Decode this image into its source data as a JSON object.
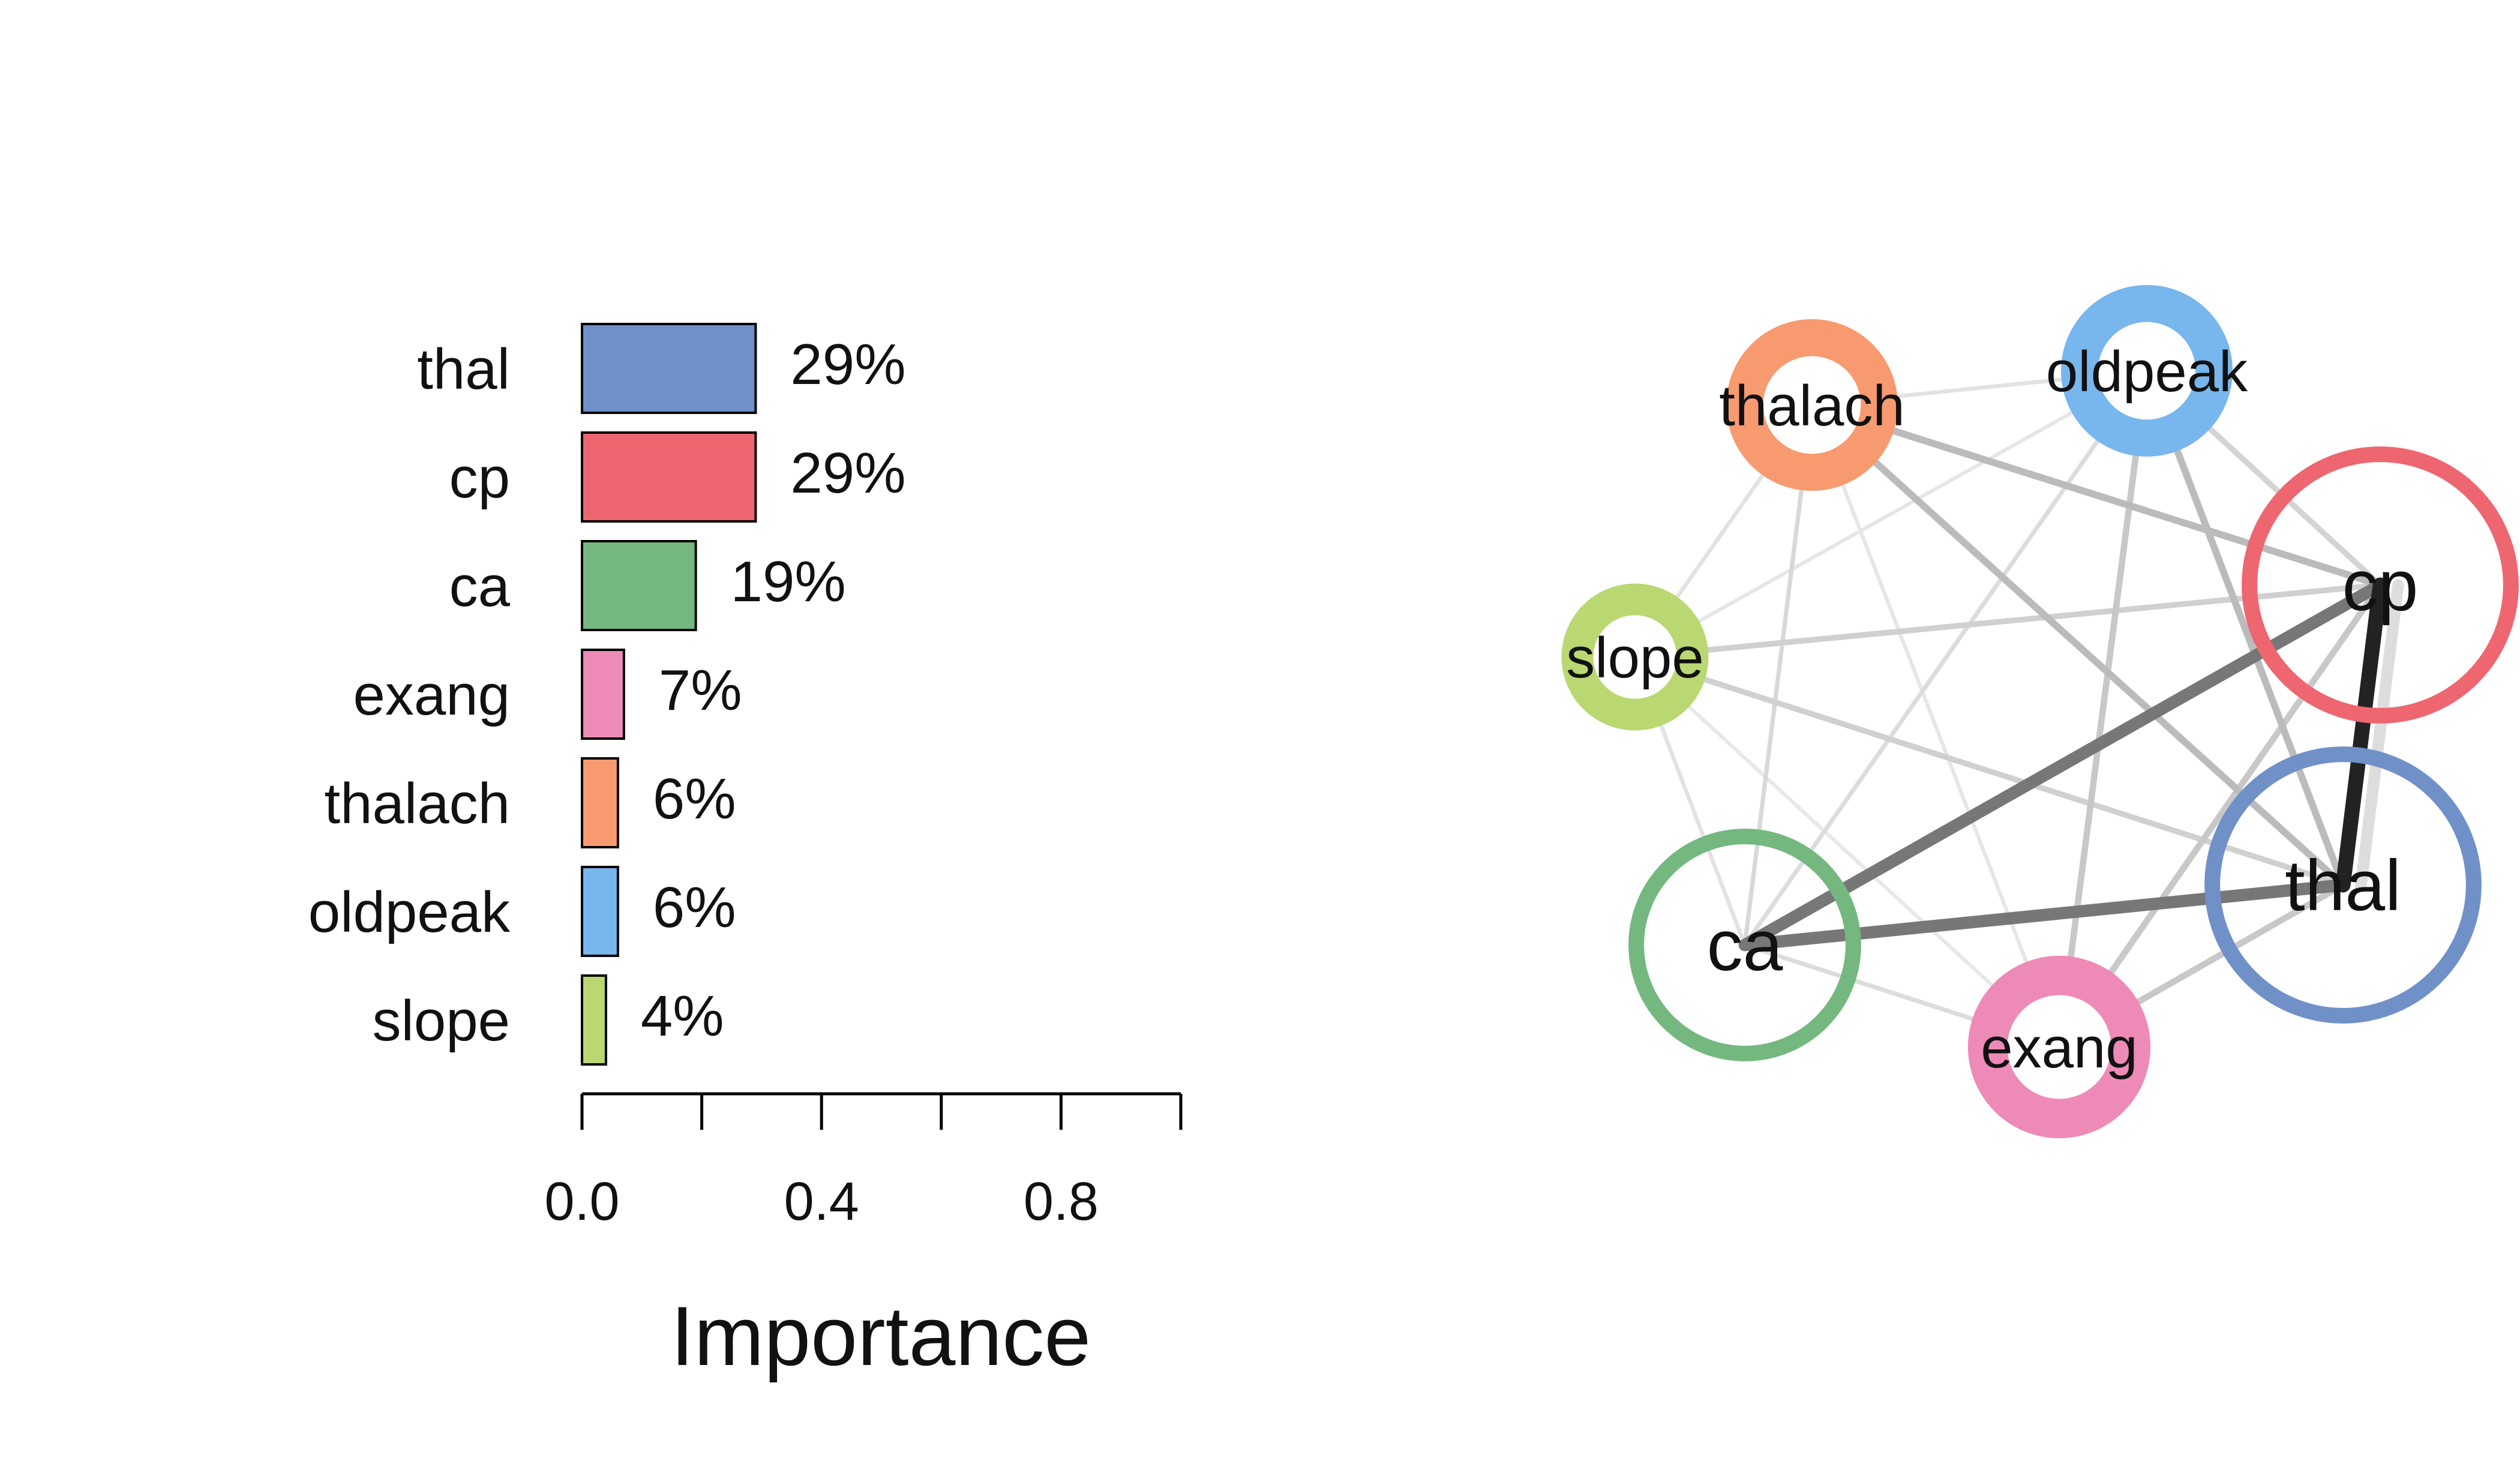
{
  "chart_data": [
    {
      "type": "bar",
      "orientation": "horizontal",
      "categories": [
        "thal",
        "cp",
        "ca",
        "exang",
        "thalach",
        "oldpeak",
        "slope"
      ],
      "values": [
        0.29,
        0.29,
        0.19,
        0.07,
        0.06,
        0.06,
        0.04
      ],
      "value_labels": [
        "29%",
        "29%",
        "19%",
        "7%",
        "6%",
        "6%",
        "4%"
      ],
      "colors": [
        "#7090c8",
        "#ee6670",
        "#74b880",
        "#ee8ab8",
        "#f89a70",
        "#78b6ee",
        "#b9d872"
      ],
      "xlabel": "Importance",
      "xlim": [
        0,
        1
      ],
      "xticks": [
        0.0,
        0.2,
        0.4,
        0.6,
        0.8,
        1.0
      ],
      "xtick_labels": [
        "0.0",
        "",
        "0.4",
        "",
        "0.8",
        ""
      ]
    },
    {
      "type": "network",
      "nodes": [
        {
          "id": "thalach",
          "label": "thalach",
          "color": "#f89a70",
          "importance": 0.06
        },
        {
          "id": "oldpeak",
          "label": "oldpeak",
          "color": "#78b6ee",
          "importance": 0.06
        },
        {
          "id": "cp",
          "label": "cp",
          "color": "#ee6670",
          "importance": 0.29
        },
        {
          "id": "slope",
          "label": "slope",
          "color": "#b9d872",
          "importance": 0.04
        },
        {
          "id": "thal",
          "label": "thal",
          "color": "#7090c8",
          "importance": 0.29
        },
        {
          "id": "ca",
          "label": "ca",
          "color": "#74b880",
          "importance": 0.19
        },
        {
          "id": "exang",
          "label": "exang",
          "color": "#ee8ab8",
          "importance": 0.07
        }
      ],
      "edges": [
        {
          "source": "cp",
          "target": "thal",
          "strength": 0.95,
          "shade": "#222222"
        },
        {
          "source": "ca",
          "target": "cp",
          "strength": 0.75,
          "shade": "#777777"
        },
        {
          "source": "ca",
          "target": "thal",
          "strength": 0.75,
          "shade": "#777777"
        },
        {
          "source": "cp",
          "target": "thal",
          "strength": 0.7,
          "shade": "#dddddd",
          "alt": true
        },
        {
          "source": "thalach",
          "target": "cp",
          "strength": 0.35,
          "shade": "#bbbbbb"
        },
        {
          "source": "thalach",
          "target": "thal",
          "strength": 0.35,
          "shade": "#bbbbbb"
        },
        {
          "source": "oldpeak",
          "target": "thal",
          "strength": 0.35,
          "shade": "#bbbbbb"
        },
        {
          "source": "oldpeak",
          "target": "exang",
          "strength": 0.3,
          "shade": "#c8c8c8"
        },
        {
          "source": "exang",
          "target": "cp",
          "strength": 0.3,
          "shade": "#c8c8c8"
        },
        {
          "source": "exang",
          "target": "thal",
          "strength": 0.3,
          "shade": "#c8c8c8"
        },
        {
          "source": "slope",
          "target": "cp",
          "strength": 0.25,
          "shade": "#d0d0d0"
        },
        {
          "source": "slope",
          "target": "thal",
          "strength": 0.25,
          "shade": "#d0d0d0"
        },
        {
          "source": "thalach",
          "target": "oldpeak",
          "strength": 0.12,
          "shade": "#e2e2e2"
        },
        {
          "source": "thalach",
          "target": "ca",
          "strength": 0.15,
          "shade": "#d8d8d8"
        },
        {
          "source": "thalach",
          "target": "slope",
          "strength": 0.12,
          "shade": "#e2e2e2"
        },
        {
          "source": "thalach",
          "target": "exang",
          "strength": 0.1,
          "shade": "#e6e6e6"
        },
        {
          "source": "oldpeak",
          "target": "ca",
          "strength": 0.15,
          "shade": "#dcdcdc"
        },
        {
          "source": "oldpeak",
          "target": "slope",
          "strength": 0.1,
          "shade": "#e6e6e6"
        },
        {
          "source": "oldpeak",
          "target": "cp",
          "strength": 0.25,
          "shade": "#d4d4d4"
        },
        {
          "source": "slope",
          "target": "ca",
          "strength": 0.12,
          "shade": "#e2e2e2"
        },
        {
          "source": "slope",
          "target": "exang",
          "strength": 0.1,
          "shade": "#e8e8e8"
        },
        {
          "source": "ca",
          "target": "exang",
          "strength": 0.15,
          "shade": "#dcdcdc"
        }
      ]
    }
  ]
}
